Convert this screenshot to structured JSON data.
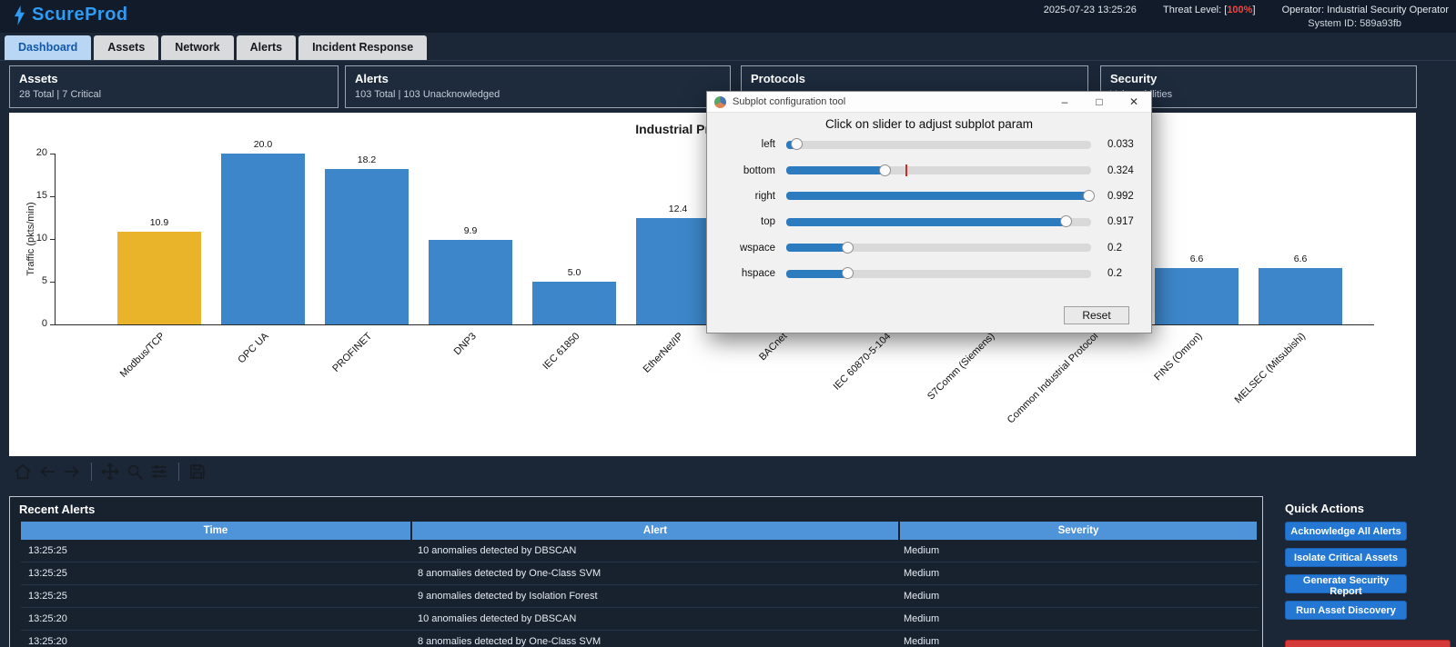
{
  "app": {
    "brand": "ScureProd",
    "datetime": "2025-07-23 13:25:26",
    "threat_prefix": "Threat Level: [",
    "threat_value": "100%",
    "threat_suffix": "]",
    "operator": "Operator: Industrial Security Operator",
    "system_id": "System ID: 589a93fb"
  },
  "tabs": [
    {
      "label": "Dashboard",
      "active": true
    },
    {
      "label": "Assets",
      "active": false
    },
    {
      "label": "Network",
      "active": false
    },
    {
      "label": "Alerts",
      "active": false
    },
    {
      "label": "Incident Response",
      "active": false
    }
  ],
  "summary_cards": [
    {
      "title": "Assets",
      "subtitle": "28 Total | 7 Critical"
    },
    {
      "title": "Alerts",
      "subtitle": "103 Total | 103 Unacknowledged"
    },
    {
      "title": "Protocols",
      "subtitle": ""
    },
    {
      "title": "Security",
      "subtitle": "Vulnerabilities"
    }
  ],
  "chart_data": {
    "type": "bar",
    "title": "Industrial Protocol Traffic",
    "ylabel": "Traffic (pkts/min)",
    "xlabel": "",
    "ylim": [
      0,
      20
    ],
    "yticks": [
      0,
      5,
      10,
      15,
      20
    ],
    "grid": false,
    "legend": "none",
    "categories": [
      "Modbus/TCP",
      "OPC UA",
      "PROFINET",
      "DNP3",
      "IEC 61850",
      "EtherNet/IP",
      "BACnet",
      "IEC 60870-5-104",
      "S7Comm (Siemens)",
      "Common Industrial Protocol",
      "FINS (Omron)",
      "MELSEC (Mitsubishi)"
    ],
    "values": [
      10.9,
      20.0,
      18.2,
      9.9,
      5.0,
      12.4,
      null,
      null,
      null,
      null,
      6.6,
      6.6
    ],
    "bar_color": "#3c86c9",
    "highlight_color": "#e9b42a",
    "highlight_index": 0
  },
  "toolbar_icons": [
    "home",
    "back",
    "forward",
    "pan",
    "zoom",
    "subplots",
    "save"
  ],
  "subplot_dialog": {
    "title": "Subplot configuration tool",
    "heading": "Click on slider to adjust subplot param",
    "sliders": [
      {
        "name": "left",
        "value": "0.033",
        "pct": 3.3
      },
      {
        "name": "bottom",
        "value": "0.324",
        "pct": 32.4,
        "mark_pct": 39
      },
      {
        "name": "right",
        "value": "0.992",
        "pct": 99.2
      },
      {
        "name": "top",
        "value": "0.917",
        "pct": 91.7
      },
      {
        "name": "wspace",
        "value": "0.2",
        "pct": 20
      },
      {
        "name": "hspace",
        "value": "0.2",
        "pct": 20
      }
    ],
    "reset_label": "Reset",
    "window_buttons": {
      "minimize": "–",
      "maximize": "□",
      "close": "✕"
    }
  },
  "recent_alerts": {
    "title": "Recent Alerts",
    "columns": [
      "Time",
      "Alert",
      "Severity"
    ],
    "rows": [
      {
        "time": "13:25:25",
        "alert": "10 anomalies detected by DBSCAN",
        "severity": "Medium"
      },
      {
        "time": "13:25:25",
        "alert": "8 anomalies detected by One-Class SVM",
        "severity": "Medium"
      },
      {
        "time": "13:25:25",
        "alert": "9 anomalies detected by Isolation Forest",
        "severity": "Medium"
      },
      {
        "time": "13:25:20",
        "alert": "10 anomalies detected by DBSCAN",
        "severity": "Medium"
      },
      {
        "time": "13:25:20",
        "alert": "8 anomalies detected by One-Class SVM",
        "severity": "Medium"
      }
    ]
  },
  "quick_actions": {
    "title": "Quick Actions",
    "buttons": [
      "Acknowledge All Alerts",
      "Isolate Critical Assets",
      "Generate Security Report",
      "Run Asset Discovery"
    ],
    "danger_button": ""
  },
  "colors": {
    "accent_blue": "#2f9bf2",
    "bar_blue": "#3c86c9",
    "bar_gold": "#e9b42a",
    "threat_red": "#ff4136",
    "table_header_blue": "#4f93d8",
    "action_button_blue": "#2577d4",
    "danger_red": "#d43a3a"
  }
}
